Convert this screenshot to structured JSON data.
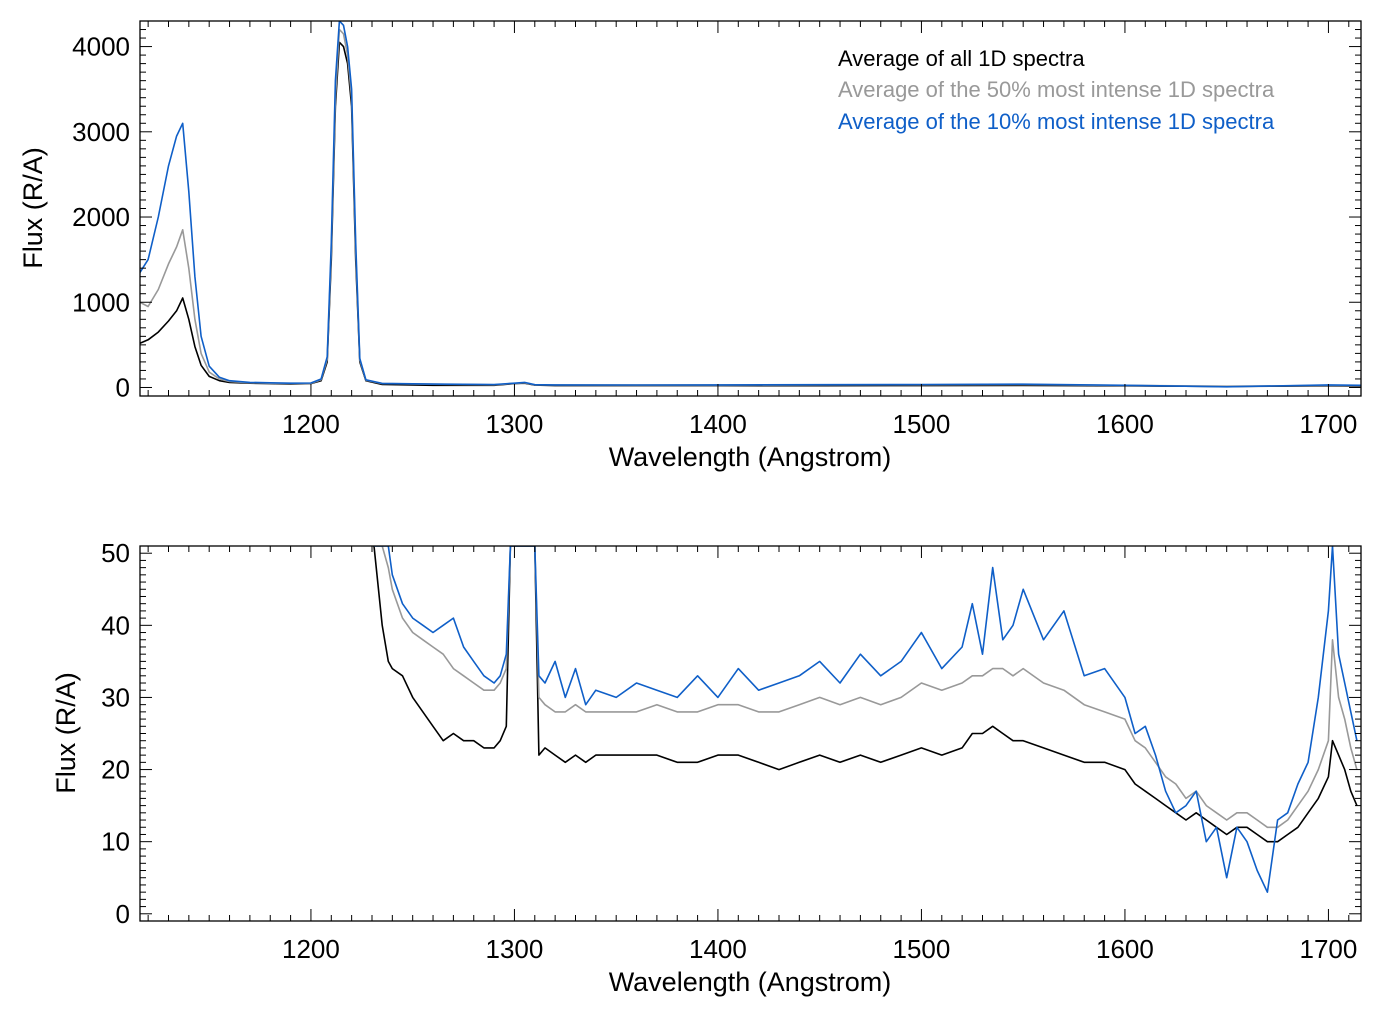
{
  "chart_data": [
    {
      "type": "line",
      "title": "",
      "xlabel": "Wavelength (Angstrom)",
      "ylabel": "Flux (R/A)",
      "xlim": [
        1116,
        1716
      ],
      "ylim": [
        -100,
        4300
      ],
      "xticks": [
        1200,
        1300,
        1400,
        1500,
        1600,
        1700
      ],
      "xtick_labels": [
        "1200",
        "1300",
        "1400",
        "1500",
        "1600",
        "1700"
      ],
      "yticks": [
        0,
        1000,
        2000,
        3000,
        4000
      ],
      "ytick_labels": [
        "0",
        "1000",
        "2000",
        "3000",
        "4000"
      ],
      "grid": false,
      "legend_position": "top-right",
      "series": [
        {
          "name": "Average of all 1D spectra",
          "color": "#000000",
          "x": [
            1116,
            1120,
            1125,
            1130,
            1134,
            1137,
            1140,
            1143,
            1146,
            1150,
            1155,
            1160,
            1170,
            1180,
            1190,
            1200,
            1205,
            1208,
            1210,
            1212,
            1214,
            1216,
            1218,
            1220,
            1222,
            1224,
            1227,
            1235,
            1260,
            1290,
            1300,
            1305,
            1310,
            1320,
            1360,
            1400,
            1450,
            1500,
            1550,
            1600,
            1650,
            1700,
            1716
          ],
          "y": [
            520,
            560,
            650,
            780,
            900,
            1050,
            800,
            480,
            260,
            130,
            80,
            60,
            50,
            45,
            40,
            45,
            80,
            300,
            1500,
            3300,
            4050,
            4000,
            3800,
            3300,
            1500,
            300,
            80,
            35,
            25,
            25,
            45,
            50,
            28,
            22,
            22,
            22,
            21,
            22,
            24,
            20,
            12,
            18,
            15
          ]
        },
        {
          "name": "Average of the 50% most intense 1D spectra",
          "color": "#999999",
          "x": [
            1116,
            1120,
            1125,
            1130,
            1134,
            1137,
            1140,
            1143,
            1146,
            1150,
            1155,
            1160,
            1170,
            1180,
            1190,
            1200,
            1205,
            1208,
            1210,
            1212,
            1214,
            1216,
            1218,
            1220,
            1222,
            1224,
            1227,
            1235,
            1260,
            1290,
            1300,
            1305,
            1310,
            1320,
            1360,
            1400,
            1450,
            1500,
            1550,
            1600,
            1650,
            1700,
            1716
          ],
          "y": [
            1000,
            950,
            1150,
            1450,
            1650,
            1850,
            1400,
            800,
            400,
            180,
            100,
            70,
            55,
            50,
            45,
            48,
            90,
            330,
            1600,
            3400,
            4200,
            4150,
            3900,
            3400,
            1600,
            320,
            85,
            45,
            38,
            32,
            48,
            55,
            30,
            29,
            28,
            28,
            30,
            32,
            34,
            24,
            15,
            22,
            20
          ]
        },
        {
          "name": "Average of the 10% most intense 1D spectra",
          "color": "#0f5fc8",
          "x": [
            1116,
            1120,
            1125,
            1130,
            1134,
            1137,
            1140,
            1143,
            1146,
            1150,
            1155,
            1160,
            1170,
            1180,
            1190,
            1200,
            1205,
            1208,
            1210,
            1212,
            1214,
            1216,
            1218,
            1220,
            1222,
            1224,
            1227,
            1235,
            1260,
            1290,
            1300,
            1305,
            1310,
            1320,
            1360,
            1400,
            1450,
            1500,
            1550,
            1600,
            1650,
            1700,
            1716
          ],
          "y": [
            1350,
            1500,
            2000,
            2600,
            2950,
            3100,
            2300,
            1300,
            600,
            250,
            120,
            80,
            60,
            55,
            50,
            52,
            100,
            360,
            1700,
            3600,
            4300,
            4250,
            4000,
            3500,
            1700,
            340,
            90,
            48,
            40,
            35,
            50,
            60,
            33,
            30,
            29,
            30,
            33,
            35,
            38,
            25,
            8,
            30,
            25
          ]
        }
      ]
    },
    {
      "type": "line",
      "title": "",
      "xlabel": "Wavelength (Angstrom)",
      "ylabel": "Flux (R/A)",
      "xlim": [
        1116,
        1716
      ],
      "ylim": [
        -1,
        51
      ],
      "xticks": [
        1200,
        1300,
        1400,
        1500,
        1600,
        1700
      ],
      "xtick_labels": [
        "1200",
        "1300",
        "1400",
        "1500",
        "1600",
        "1700"
      ],
      "yticks": [
        0,
        10,
        20,
        30,
        40,
        50
      ],
      "ytick_labels": [
        "0",
        "10",
        "20",
        "30",
        "40",
        "50"
      ],
      "grid": false,
      "series": [
        {
          "name": "Average of all 1D spectra",
          "color": "#000000",
          "x": [
            1231,
            1235,
            1238,
            1240,
            1245,
            1250,
            1255,
            1260,
            1265,
            1270,
            1275,
            1280,
            1285,
            1290,
            1293,
            1296,
            1298,
            1310,
            1312,
            1315,
            1320,
            1325,
            1330,
            1335,
            1340,
            1350,
            1360,
            1370,
            1380,
            1390,
            1400,
            1410,
            1420,
            1430,
            1440,
            1450,
            1460,
            1470,
            1480,
            1490,
            1500,
            1510,
            1520,
            1525,
            1530,
            1535,
            1540,
            1545,
            1550,
            1560,
            1570,
            1580,
            1590,
            1600,
            1605,
            1610,
            1615,
            1620,
            1625,
            1630,
            1635,
            1640,
            1645,
            1650,
            1655,
            1660,
            1665,
            1670,
            1675,
            1680,
            1685,
            1690,
            1695,
            1700,
            1702,
            1705,
            1708,
            1711,
            1714
          ],
          "y": [
            51,
            40,
            35,
            34,
            33,
            30,
            28,
            26,
            24,
            25,
            24,
            24,
            23,
            23,
            24,
            26,
            51,
            51,
            22,
            23,
            22,
            21,
            22,
            21,
            22,
            22,
            22,
            22,
            21,
            21,
            22,
            22,
            21,
            20,
            21,
            22,
            21,
            22,
            21,
            22,
            23,
            22,
            23,
            25,
            25,
            26,
            25,
            24,
            24,
            23,
            22,
            21,
            21,
            20,
            18,
            17,
            16,
            15,
            14,
            13,
            14,
            13,
            12,
            11,
            12,
            12,
            11,
            10,
            10,
            11,
            12,
            14,
            16,
            19,
            24,
            22,
            20,
            17,
            15
          ]
        },
        {
          "name": "Average of the 50% most intense 1D spectra",
          "color": "#999999",
          "x": [
            1231,
            1235,
            1238,
            1240,
            1245,
            1250,
            1255,
            1260,
            1265,
            1270,
            1275,
            1280,
            1285,
            1290,
            1293,
            1296,
            1298,
            1310,
            1312,
            1315,
            1320,
            1325,
            1330,
            1335,
            1340,
            1350,
            1360,
            1370,
            1380,
            1390,
            1400,
            1410,
            1420,
            1430,
            1440,
            1450,
            1460,
            1470,
            1480,
            1490,
            1500,
            1510,
            1520,
            1525,
            1530,
            1535,
            1540,
            1545,
            1550,
            1560,
            1570,
            1580,
            1590,
            1600,
            1605,
            1610,
            1615,
            1620,
            1625,
            1630,
            1635,
            1640,
            1645,
            1650,
            1655,
            1660,
            1665,
            1670,
            1675,
            1680,
            1685,
            1690,
            1695,
            1700,
            1702,
            1705,
            1708,
            1711,
            1714
          ],
          "y": [
            51,
            51,
            48,
            45,
            41,
            39,
            38,
            37,
            36,
            34,
            33,
            32,
            31,
            31,
            32,
            34,
            51,
            51,
            30,
            29,
            28,
            28,
            29,
            28,
            28,
            28,
            28,
            29,
            28,
            28,
            29,
            29,
            28,
            28,
            29,
            30,
            29,
            30,
            29,
            30,
            32,
            31,
            32,
            33,
            33,
            34,
            34,
            33,
            34,
            32,
            31,
            29,
            28,
            27,
            24,
            23,
            21,
            19,
            18,
            16,
            17,
            15,
            14,
            13,
            14,
            14,
            13,
            12,
            12,
            13,
            15,
            17,
            20,
            24,
            38,
            30,
            27,
            23,
            20
          ]
        },
        {
          "name": "Average of the 10% most intense 1D spectra",
          "color": "#0f5fc8",
          "x": [
            1231,
            1235,
            1238,
            1240,
            1245,
            1250,
            1255,
            1260,
            1265,
            1270,
            1275,
            1280,
            1285,
            1290,
            1293,
            1296,
            1298,
            1310,
            1312,
            1315,
            1320,
            1325,
            1330,
            1335,
            1340,
            1350,
            1360,
            1370,
            1380,
            1390,
            1400,
            1410,
            1420,
            1430,
            1440,
            1450,
            1460,
            1470,
            1480,
            1490,
            1500,
            1510,
            1520,
            1525,
            1530,
            1535,
            1540,
            1545,
            1550,
            1560,
            1570,
            1580,
            1590,
            1600,
            1605,
            1610,
            1615,
            1620,
            1625,
            1630,
            1635,
            1640,
            1645,
            1650,
            1655,
            1660,
            1665,
            1670,
            1675,
            1680,
            1685,
            1690,
            1695,
            1700,
            1702,
            1705,
            1708,
            1711,
            1714
          ],
          "y": [
            51,
            51,
            51,
            47,
            43,
            41,
            40,
            39,
            40,
            41,
            37,
            35,
            33,
            32,
            33,
            36,
            51,
            51,
            33,
            32,
            35,
            30,
            34,
            29,
            31,
            30,
            32,
            31,
            30,
            33,
            30,
            34,
            31,
            32,
            33,
            35,
            32,
            36,
            33,
            35,
            39,
            34,
            37,
            43,
            36,
            48,
            38,
            40,
            45,
            38,
            42,
            33,
            34,
            30,
            25,
            26,
            22,
            17,
            14,
            15,
            17,
            10,
            12,
            5,
            12,
            10,
            6,
            3,
            13,
            14,
            18,
            21,
            30,
            42,
            51,
            36,
            32,
            28,
            24
          ]
        }
      ]
    }
  ]
}
